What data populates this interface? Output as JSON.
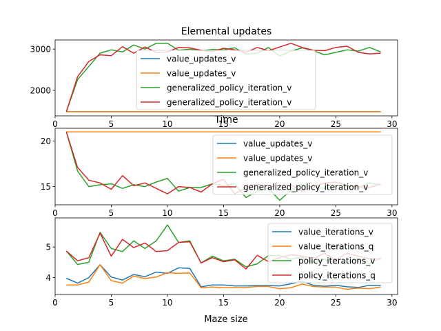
{
  "figure": {
    "xlabel": "Maze size"
  },
  "chart_data": [
    {
      "type": "line",
      "title": "Elemental updates",
      "xlabel": "",
      "ylabel": "",
      "xlim": [
        0,
        30.5
      ],
      "ylim": [
        1380,
        3220
      ],
      "xticks": [
        0,
        5,
        10,
        15,
        20,
        25,
        30
      ],
      "yticks": [
        2000,
        3000
      ],
      "legend_position": "center",
      "x": [
        1,
        2,
        3,
        4,
        5,
        6,
        7,
        8,
        9,
        10,
        11,
        12,
        13,
        14,
        15,
        16,
        17,
        18,
        19,
        20,
        21,
        22,
        23,
        24,
        25,
        26,
        27,
        28,
        29
      ],
      "series": [
        {
          "name": "value_updates_v",
          "color": "#1f77b4",
          "values": [
            1480,
            1480,
            1480,
            1480,
            1480,
            1480,
            1480,
            1480,
            1480,
            1480,
            1480,
            1480,
            1480,
            1480,
            1480,
            1480,
            1480,
            1480,
            1480,
            1480,
            1480,
            1480,
            1480,
            1480,
            1480,
            1480,
            1480,
            1480,
            1480
          ]
        },
        {
          "name": "value_updates_v",
          "color": "#ff7f0e",
          "values": [
            1480,
            1480,
            1480,
            1480,
            1480,
            1480,
            1480,
            1480,
            1480,
            1480,
            1480,
            1480,
            1480,
            1480,
            1480,
            1480,
            1480,
            1480,
            1480,
            1480,
            1480,
            1480,
            1480,
            1480,
            1480,
            1480,
            1480,
            1480,
            1480
          ]
        },
        {
          "name": "generalized_policy_iteration_v",
          "color": "#2ca02c",
          "values": [
            1480,
            2260,
            2580,
            2900,
            2980,
            2930,
            3100,
            3000,
            3140,
            3140,
            2970,
            3000,
            2960,
            2990,
            2980,
            3030,
            2880,
            2900,
            3040,
            2830,
            2950,
            3030,
            2960,
            2860,
            2920,
            2980,
            2950,
            3040,
            2930
          ]
        },
        {
          "name": "generalized_policy_iteration_v",
          "color": "#d62728",
          "values": [
            1480,
            2330,
            2700,
            2860,
            2840,
            3060,
            2900,
            3050,
            2920,
            2930,
            3040,
            3030,
            2970,
            2940,
            3020,
            2980,
            2920,
            3040,
            2960,
            3050,
            3140,
            3040,
            2970,
            2960,
            3040,
            3070,
            2920,
            2880,
            2900
          ]
        }
      ]
    },
    {
      "type": "line",
      "title": "Time",
      "xlabel": "",
      "ylabel": "",
      "xlim": [
        0,
        30.5
      ],
      "ylim": [
        13,
        21.4
      ],
      "xticks": [
        0,
        5,
        10,
        15,
        20,
        25,
        30
      ],
      "yticks": [
        15,
        20
      ],
      "legend_position": "upper right",
      "x": [
        1,
        2,
        3,
        4,
        5,
        6,
        7,
        8,
        9,
        10,
        11,
        12,
        13,
        14,
        15,
        16,
        17,
        18,
        19,
        20,
        21,
        22,
        23,
        24,
        25,
        26,
        27,
        28,
        29
      ],
      "series": [
        {
          "name": "value_updates_v",
          "color": "#1f77b4",
          "values": [
            21,
            21,
            21,
            21,
            21,
            21,
            21,
            21,
            21,
            21,
            21,
            21,
            21,
            21,
            21,
            21,
            21,
            21,
            21,
            21,
            21,
            21,
            21,
            21,
            21,
            21,
            21,
            21,
            21
          ]
        },
        {
          "name": "value_updates_v",
          "color": "#ff7f0e",
          "values": [
            21,
            21,
            21,
            21,
            21,
            21,
            21,
            21,
            21,
            21,
            21,
            21,
            21,
            21,
            21,
            21,
            21,
            21,
            21,
            21,
            21,
            21,
            21,
            21,
            21,
            21,
            21,
            21,
            21
          ]
        },
        {
          "name": "generalized_policy_iteration_v",
          "color": "#2ca02c",
          "values": [
            21,
            16.7,
            15.0,
            15.2,
            15.3,
            14.8,
            15.2,
            15.0,
            15.5,
            15.9,
            14.5,
            14.9,
            14.9,
            15.3,
            15.1,
            15.3,
            13.8,
            14.5,
            14.8,
            13.5,
            14.6,
            15.2,
            14.9,
            14.8,
            15.1,
            15.0,
            14.9,
            15.4,
            15.2
          ]
        },
        {
          "name": "generalized_policy_iteration_v",
          "color": "#d62728",
          "values": [
            21,
            17.1,
            15.7,
            15.4,
            14.7,
            16.2,
            15.1,
            15.4,
            14.8,
            14.2,
            15.0,
            14.9,
            14.4,
            15.3,
            15.8,
            14.2,
            14.9,
            15.3,
            15.0,
            15.1,
            15.2,
            14.5,
            15.0,
            15.4,
            15.5,
            15.1,
            15.0,
            14.9,
            15.3
          ]
        }
      ]
    },
    {
      "type": "line",
      "title": "",
      "xlabel": "Maze size",
      "ylabel": "",
      "xlim": [
        0,
        30.5
      ],
      "ylim": [
        3.45,
        5.95
      ],
      "xticks": [
        0,
        5,
        10,
        15,
        20,
        25,
        30
      ],
      "yticks": [
        4,
        5
      ],
      "legend_position": "upper right",
      "x": [
        1,
        2,
        3,
        4,
        5,
        6,
        7,
        8,
        9,
        10,
        11,
        12,
        13,
        14,
        15,
        16,
        17,
        18,
        19,
        20,
        21,
        22,
        23,
        24,
        25,
        26,
        27,
        28,
        29
      ],
      "series": [
        {
          "name": "value_iterations_v",
          "color": "#1f77b4",
          "values": [
            3.98,
            3.82,
            4.0,
            4.42,
            4.02,
            3.92,
            4.1,
            4.03,
            4.18,
            4.14,
            4.32,
            4.3,
            3.7,
            3.76,
            3.76,
            3.73,
            3.73,
            3.74,
            3.74,
            3.73,
            3.8,
            3.88,
            3.75,
            3.72,
            3.75,
            3.7,
            3.68,
            3.75,
            3.74
          ]
        },
        {
          "name": "value_iterations_q",
          "color": "#ff7f0e",
          "values": [
            3.76,
            3.76,
            3.85,
            4.42,
            3.9,
            3.82,
            4.05,
            3.97,
            4.02,
            4.16,
            4.14,
            4.15,
            3.67,
            3.69,
            3.67,
            3.67,
            3.68,
            3.71,
            3.71,
            3.64,
            3.67,
            3.79,
            3.71,
            3.69,
            3.69,
            3.62,
            3.66,
            3.64,
            3.69
          ]
        },
        {
          "name": "policy_iterations_v",
          "color": "#2ca02c",
          "values": [
            4.87,
            4.43,
            4.5,
            5.48,
            4.95,
            4.85,
            5.2,
            4.95,
            5.2,
            5.72,
            5.15,
            5.2,
            4.48,
            4.7,
            4.55,
            4.6,
            4.35,
            4.45,
            4.72,
            4.72,
            4.6,
            4.67,
            4.5,
            4.6,
            4.47,
            4.49,
            4.62,
            4.45,
            4.65
          ]
        },
        {
          "name": "policy_iterations_q",
          "color": "#d62728",
          "values": [
            4.87,
            4.55,
            4.65,
            5.45,
            4.7,
            5.25,
            4.98,
            5.13,
            4.85,
            4.88,
            5.15,
            5.17,
            4.48,
            4.65,
            4.52,
            4.58,
            4.28,
            4.73,
            4.52,
            4.65,
            4.75,
            4.7,
            4.62,
            4.8,
            4.58,
            4.8,
            4.7,
            4.62,
            4.6
          ]
        }
      ]
    }
  ]
}
